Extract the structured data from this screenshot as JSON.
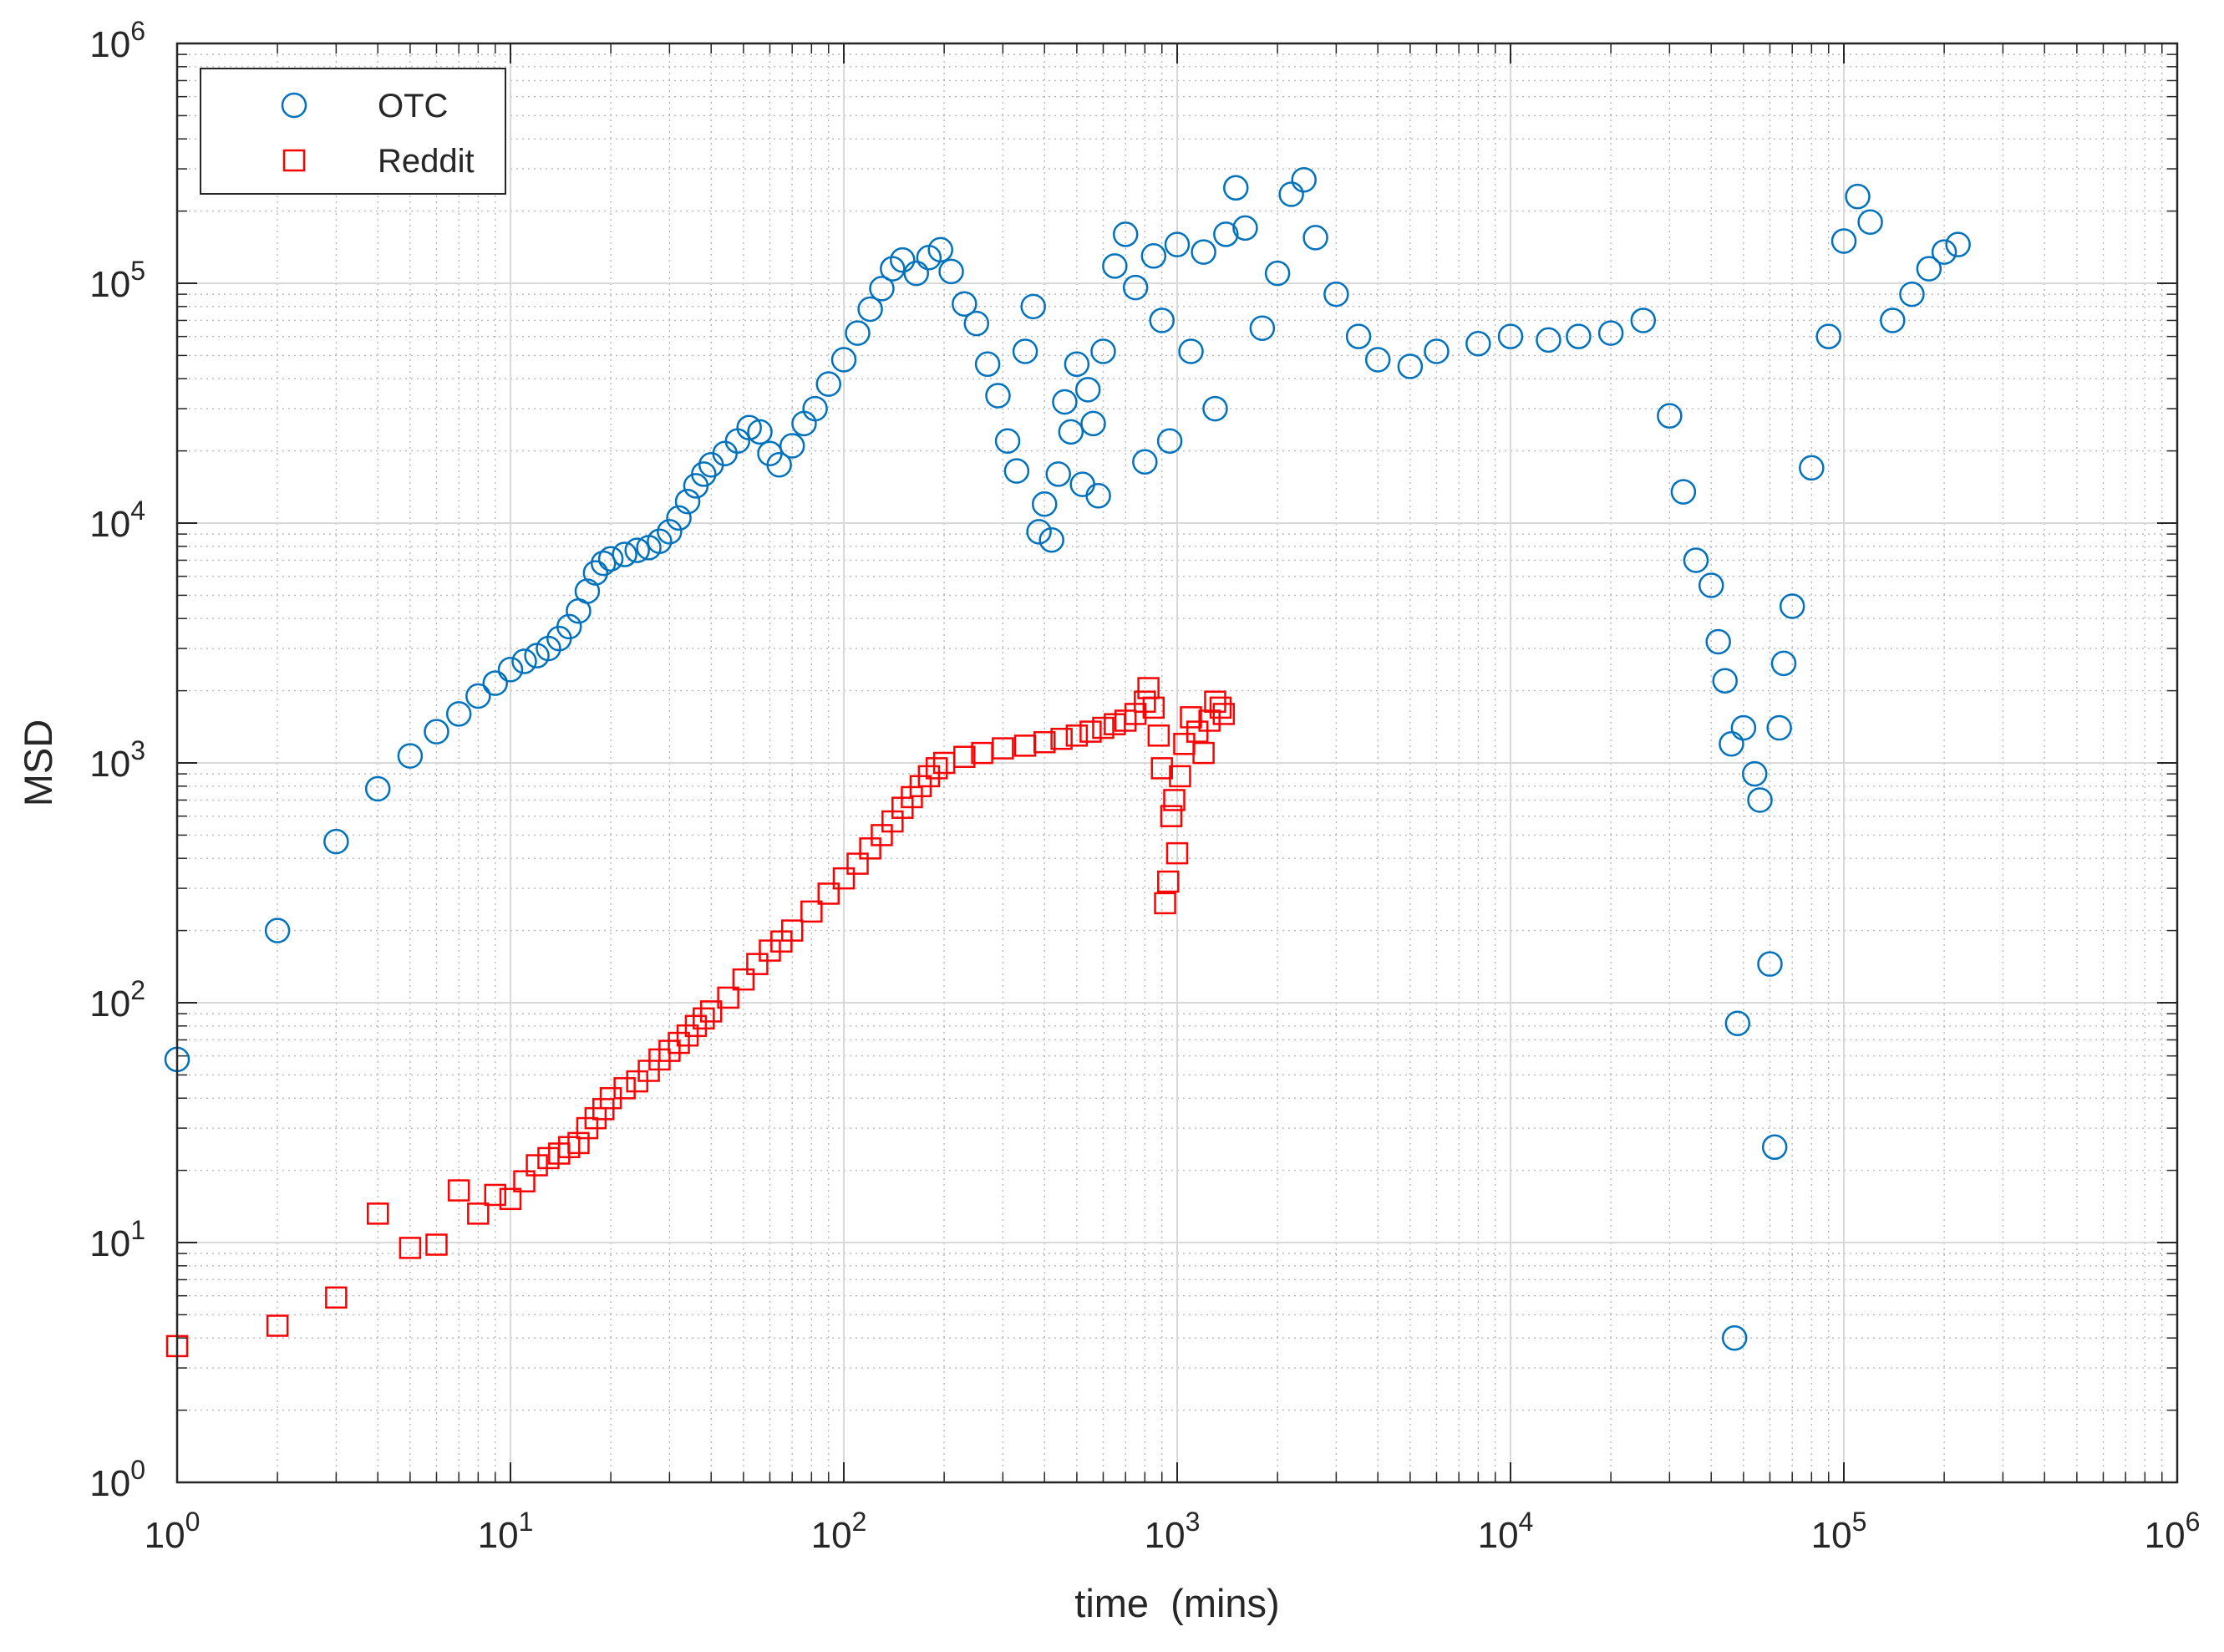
{
  "chart_data": {
    "type": "scatter",
    "xlabel": "time  (mins)",
    "ylabel": "MSD",
    "xscale": "log",
    "yscale": "log",
    "xlim": [
      1,
      1000000
    ],
    "ylim": [
      1,
      1000000
    ],
    "x_tick_labels": [
      {
        "value": 1,
        "base": "10",
        "exp": "0"
      },
      {
        "value": 10,
        "base": "10",
        "exp": "1"
      },
      {
        "value": 100,
        "base": "10",
        "exp": "2"
      },
      {
        "value": 1000,
        "base": "10",
        "exp": "3"
      },
      {
        "value": 10000,
        "base": "10",
        "exp": "4"
      },
      {
        "value": 100000,
        "base": "10",
        "exp": "5"
      },
      {
        "value": 1000000,
        "base": "10",
        "exp": "6"
      }
    ],
    "y_tick_labels": [
      {
        "value": 1,
        "base": "10",
        "exp": "0"
      },
      {
        "value": 10,
        "base": "10",
        "exp": "1"
      },
      {
        "value": 100,
        "base": "10",
        "exp": "2"
      },
      {
        "value": 1000,
        "base": "10",
        "exp": "3"
      },
      {
        "value": 10000,
        "base": "10",
        "exp": "4"
      },
      {
        "value": 100000,
        "base": "10",
        "exp": "5"
      },
      {
        "value": 1000000,
        "base": "10",
        "exp": "6"
      }
    ],
    "grid": true,
    "minor_grid": true,
    "legend": "top-left",
    "series": [
      {
        "name": "OTC",
        "marker": "circle",
        "color": "#0072BD",
        "points": [
          [
            1,
            58
          ],
          [
            2,
            200
          ],
          [
            3,
            470
          ],
          [
            4,
            780
          ],
          [
            5,
            1070
          ],
          [
            6,
            1350
          ],
          [
            7,
            1600
          ],
          [
            8,
            1900
          ],
          [
            9,
            2150
          ],
          [
            10,
            2450
          ],
          [
            11,
            2650
          ],
          [
            12,
            2800
          ],
          [
            13,
            3000
          ],
          [
            14,
            3300
          ],
          [
            15,
            3700
          ],
          [
            16,
            4300
          ],
          [
            17,
            5200
          ],
          [
            18,
            6200
          ],
          [
            19,
            6800
          ],
          [
            20,
            7100
          ],
          [
            22,
            7400
          ],
          [
            24,
            7700
          ],
          [
            26,
            7900
          ],
          [
            28,
            8400
          ],
          [
            30,
            9200
          ],
          [
            32,
            10500
          ],
          [
            34,
            12300
          ],
          [
            36,
            14300
          ],
          [
            38,
            16000
          ],
          [
            40,
            17500
          ],
          [
            44,
            19500
          ],
          [
            48,
            22000
          ],
          [
            52,
            25000
          ],
          [
            56,
            24000
          ],
          [
            60,
            19500
          ],
          [
            64,
            17500
          ],
          [
            70,
            21000
          ],
          [
            76,
            26000
          ],
          [
            82,
            30000
          ],
          [
            90,
            38000
          ],
          [
            100,
            48000
          ],
          [
            110,
            62000
          ],
          [
            120,
            78000
          ],
          [
            130,
            95000
          ],
          [
            140,
            115000
          ],
          [
            150,
            125000
          ],
          [
            165,
            110000
          ],
          [
            180,
            128000
          ],
          [
            195,
            138000
          ],
          [
            210,
            112000
          ],
          [
            230,
            82000
          ],
          [
            250,
            68000
          ],
          [
            270,
            46000
          ],
          [
            290,
            34000
          ],
          [
            310,
            22000
          ],
          [
            330,
            16500
          ],
          [
            350,
            52000
          ],
          [
            370,
            80000
          ],
          [
            385,
            9200
          ],
          [
            400,
            12000
          ],
          [
            420,
            8500
          ],
          [
            440,
            16000
          ],
          [
            460,
            32000
          ],
          [
            480,
            24000
          ],
          [
            500,
            46000
          ],
          [
            520,
            14500
          ],
          [
            540,
            36000
          ],
          [
            560,
            26000
          ],
          [
            580,
            13000
          ],
          [
            600,
            52000
          ],
          [
            650,
            118000
          ],
          [
            700,
            160000
          ],
          [
            750,
            96000
          ],
          [
            800,
            18000
          ],
          [
            850,
            130000
          ],
          [
            900,
            70000
          ],
          [
            950,
            22000
          ],
          [
            1000,
            145000
          ],
          [
            1100,
            52000
          ],
          [
            1200,
            135000
          ],
          [
            1300,
            30000
          ],
          [
            1400,
            160000
          ],
          [
            1500,
            250000
          ],
          [
            1600,
            170000
          ],
          [
            1800,
            65000
          ],
          [
            2000,
            110000
          ],
          [
            2200,
            235000
          ],
          [
            2400,
            270000
          ],
          [
            2600,
            155000
          ],
          [
            3000,
            90000
          ],
          [
            3500,
            60000
          ],
          [
            4000,
            48000
          ],
          [
            5000,
            45000
          ],
          [
            6000,
            52000
          ],
          [
            8000,
            56000
          ],
          [
            10000,
            60000
          ],
          [
            13000,
            58000
          ],
          [
            16000,
            60000
          ],
          [
            20000,
            62000
          ],
          [
            25000,
            70000
          ],
          [
            30000,
            28000
          ],
          [
            33000,
            13500
          ],
          [
            36000,
            7000
          ],
          [
            40000,
            5500
          ],
          [
            42000,
            3200
          ],
          [
            44000,
            2200
          ],
          [
            46000,
            1200
          ],
          [
            47000,
            4
          ],
          [
            48000,
            82
          ],
          [
            50000,
            1400
          ],
          [
            54000,
            900
          ],
          [
            56000,
            700
          ],
          [
            60000,
            145
          ],
          [
            62000,
            25
          ],
          [
            64000,
            1400
          ],
          [
            66000,
            2600
          ],
          [
            70000,
            4500
          ],
          [
            80000,
            17000
          ],
          [
            90000,
            60000
          ],
          [
            100000,
            150000
          ],
          [
            110000,
            230000
          ],
          [
            120000,
            180000
          ],
          [
            140000,
            70000
          ],
          [
            160000,
            90000
          ],
          [
            180000,
            115000
          ],
          [
            200000,
            135000
          ],
          [
            220000,
            145000
          ]
        ]
      },
      {
        "name": "Reddit",
        "marker": "square",
        "color": "#FF0000",
        "points": [
          [
            1,
            3.7
          ],
          [
            2,
            4.5
          ],
          [
            3,
            5.9
          ],
          [
            4,
            13.2
          ],
          [
            5,
            9.5
          ],
          [
            6,
            9.8
          ],
          [
            7,
            16.5
          ],
          [
            8,
            13.2
          ],
          [
            9,
            15.8
          ],
          [
            10,
            15.2
          ],
          [
            11,
            18
          ],
          [
            12,
            21
          ],
          [
            13,
            22.5
          ],
          [
            14,
            23.5
          ],
          [
            15,
            25
          ],
          [
            16,
            26
          ],
          [
            17,
            30
          ],
          [
            18,
            33
          ],
          [
            19,
            36
          ],
          [
            20,
            40
          ],
          [
            22,
            44
          ],
          [
            24,
            47
          ],
          [
            26,
            52
          ],
          [
            28,
            58
          ],
          [
            30,
            63
          ],
          [
            32,
            68
          ],
          [
            34,
            73
          ],
          [
            36,
            80
          ],
          [
            38,
            86
          ],
          [
            40,
            92
          ],
          [
            45,
            105
          ],
          [
            50,
            125
          ],
          [
            55,
            145
          ],
          [
            60,
            165
          ],
          [
            65,
            180
          ],
          [
            70,
            200
          ],
          [
            80,
            240
          ],
          [
            90,
            285
          ],
          [
            100,
            330
          ],
          [
            110,
            380
          ],
          [
            120,
            440
          ],
          [
            130,
            500
          ],
          [
            140,
            570
          ],
          [
            150,
            650
          ],
          [
            160,
            720
          ],
          [
            170,
            800
          ],
          [
            180,
            880
          ],
          [
            190,
            950
          ],
          [
            200,
            1000
          ],
          [
            230,
            1060
          ],
          [
            260,
            1100
          ],
          [
            300,
            1150
          ],
          [
            350,
            1180
          ],
          [
            400,
            1220
          ],
          [
            450,
            1260
          ],
          [
            500,
            1300
          ],
          [
            550,
            1350
          ],
          [
            600,
            1400
          ],
          [
            650,
            1450
          ],
          [
            700,
            1500
          ],
          [
            750,
            1600
          ],
          [
            800,
            1800
          ],
          [
            820,
            2050
          ],
          [
            850,
            1700
          ],
          [
            880,
            1300
          ],
          [
            900,
            950
          ],
          [
            920,
            260
          ],
          [
            940,
            320
          ],
          [
            960,
            600
          ],
          [
            980,
            700
          ],
          [
            1000,
            420
          ],
          [
            1020,
            880
          ],
          [
            1050,
            1200
          ],
          [
            1100,
            1550
          ],
          [
            1150,
            1350
          ],
          [
            1200,
            1100
          ],
          [
            1250,
            1500
          ],
          [
            1300,
            1800
          ],
          [
            1350,
            1700
          ],
          [
            1380,
            1600
          ]
        ]
      }
    ]
  }
}
